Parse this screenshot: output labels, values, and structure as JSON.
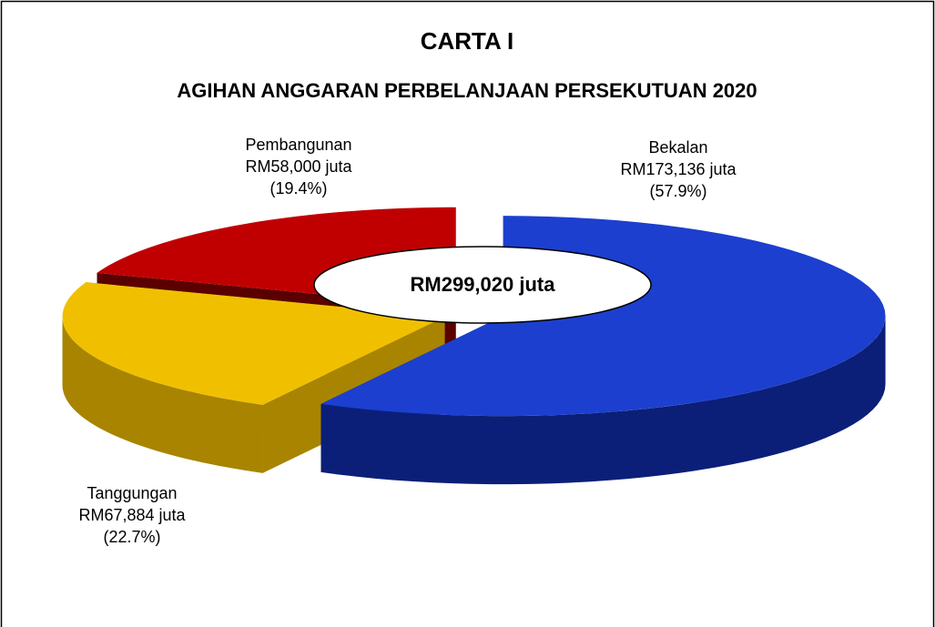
{
  "chart_data": {
    "type": "pie3d",
    "title": "CARTA I",
    "subtitle": "AGIHAN ANGGARAN PERBELANJAAN PERSEKUTUAN 2020",
    "categories": [
      "Bekalan",
      "Tanggungan",
      "Pembangunan"
    ],
    "values": [
      173136,
      67884,
      58000
    ],
    "value_labels": [
      "RM173,136 juta",
      "RM67,884 juta",
      "RM58,000 juta"
    ],
    "percentages": [
      57.9,
      22.7,
      19.4
    ],
    "percentage_labels": [
      "(57.9%)",
      "(22.7%)",
      "(19.4%)"
    ],
    "colors": [
      "#1c3fcf",
      "#f0c000",
      "#c00000"
    ],
    "side_colors": [
      "#0b1f78",
      "#a88400",
      "#5a0000"
    ],
    "total": 299020,
    "total_label": "RM299,020 juta"
  }
}
